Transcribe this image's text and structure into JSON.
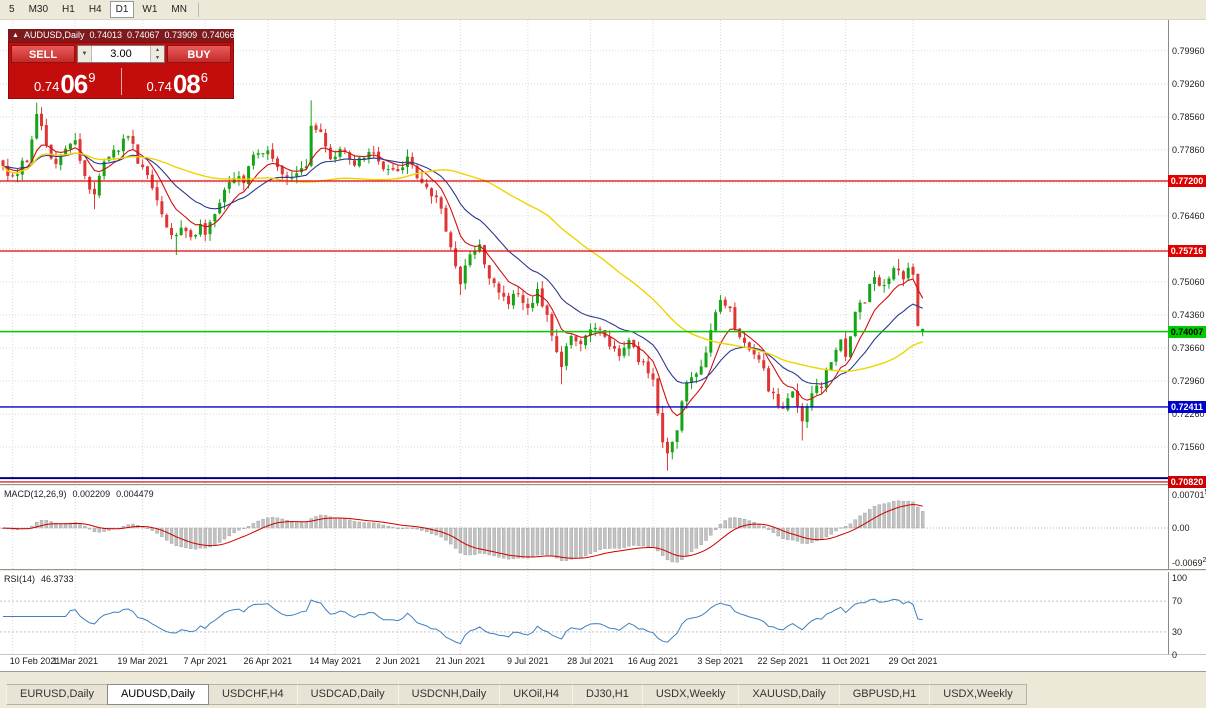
{
  "toolbar": {
    "timeframes": [
      "5",
      "M30",
      "H1",
      "H4",
      "D1",
      "W1",
      "MN"
    ],
    "active": "D1"
  },
  "chart_header": {
    "symbol": "AUDUSD,Daily",
    "open": "0.74013",
    "high": "0.74067",
    "low": "0.73909",
    "close": "0.74066"
  },
  "trade_widget": {
    "sell_label": "SELL",
    "buy_label": "BUY",
    "volume": "3.00",
    "bid": {
      "big": "0.74",
      "pips": "06",
      "point": "9"
    },
    "ask": {
      "big": "0.74",
      "pips": "08",
      "point": "6"
    }
  },
  "indicators": {
    "macd": {
      "name": "MACD(12,26,9)",
      "value1": "0.002209",
      "value2": "0.004479"
    },
    "rsi": {
      "name": "RSI(14)",
      "value": "46.3733"
    }
  },
  "axes": {
    "price_ticks": [
      "0.79960",
      "0.79260",
      "0.78560",
      "0.77860",
      "0.77160",
      "0.76460",
      "0.75760",
      "0.75060",
      "0.74360",
      "0.73660",
      "0.72960",
      "0.72260",
      "0.71560"
    ],
    "macd_ticks": [
      {
        "text": "0.00701",
        "sup": "5",
        "value": 0.007015
      },
      {
        "text": "0.00",
        "sup": "",
        "value": 0
      },
      {
        "text": "-0.0069",
        "sup": "2",
        "value": -0.00692
      }
    ],
    "rsi_ticks": [
      100,
      70,
      30,
      0
    ]
  },
  "tabs": [
    {
      "label": "EURUSD,Daily",
      "active": false
    },
    {
      "label": "AUDUSD,Daily",
      "active": true
    },
    {
      "label": "USDCHF,H4",
      "active": false
    },
    {
      "label": "USDCAD,Daily",
      "active": false
    },
    {
      "label": "USDCNH,Daily",
      "active": false
    },
    {
      "label": "UKOil,H4",
      "active": false
    },
    {
      "label": "DJ30,H1",
      "active": false
    },
    {
      "label": "USDX,Weekly",
      "active": false
    },
    {
      "label": "XAUUSD,Daily",
      "active": false
    },
    {
      "label": "GBPUSD,H1",
      "active": false
    },
    {
      "label": "USDX,Weekly",
      "active": false
    }
  ],
  "chart_data": {
    "type": "candlestick",
    "symbol": "AUDUSD",
    "timeframe": "Daily",
    "title": "AUDUSD,Daily",
    "n_candles": 192,
    "x_labels": [
      "10 Feb 2021",
      "1 Mar 2021",
      "19 Mar 2021",
      "7 Apr 2021",
      "26 Apr 2021",
      "14 May 2021",
      "2 Jun 2021",
      "21 Jun 2021",
      "9 Jul 2021",
      "28 Jul 2021",
      "16 Aug 2021",
      "3 Sep 2021",
      "22 Sep 2021",
      "11 Oct 2021",
      "29 Oct 2021"
    ],
    "x_label_indices": [
      2,
      15,
      29,
      42,
      55,
      69,
      82,
      95,
      109,
      122,
      135,
      149,
      162,
      175,
      189
    ],
    "view_price_top": 0.8061,
    "view_price_bottom": 0.7078,
    "colors": {
      "bull": "#17A317",
      "bear": "#E03535",
      "grid": "#D8D8D8"
    },
    "last_candle": {
      "open": 0.74013,
      "high": 0.74067,
      "low": 0.73909,
      "close": 0.74066
    },
    "waypoints": [
      [
        0,
        0.775
      ],
      [
        2,
        0.7732
      ],
      [
        5,
        0.7768
      ],
      [
        7,
        0.7858
      ],
      [
        9,
        0.78
      ],
      [
        11,
        0.7752
      ],
      [
        13,
        0.7788
      ],
      [
        15,
        0.7808
      ],
      [
        17,
        0.7725
      ],
      [
        19,
        0.7688
      ],
      [
        21,
        0.7768
      ],
      [
        24,
        0.7788
      ],
      [
        26,
        0.7818
      ],
      [
        28,
        0.7762
      ],
      [
        29,
        0.7748
      ],
      [
        31,
        0.7712
      ],
      [
        33,
        0.7652
      ],
      [
        35,
        0.7595
      ],
      [
        37,
        0.762
      ],
      [
        39,
        0.76
      ],
      [
        41,
        0.7628
      ],
      [
        42,
        0.7615
      ],
      [
        44,
        0.7655
      ],
      [
        46,
        0.7708
      ],
      [
        48,
        0.7735
      ],
      [
        50,
        0.7722
      ],
      [
        52,
        0.7768
      ],
      [
        54,
        0.779
      ],
      [
        55,
        0.7782
      ],
      [
        57,
        0.7748
      ],
      [
        59,
        0.7718
      ],
      [
        61,
        0.7736
      ],
      [
        63,
        0.7748
      ],
      [
        64,
        0.7848
      ],
      [
        66,
        0.7818
      ],
      [
        68,
        0.7776
      ],
      [
        69,
        0.777
      ],
      [
        71,
        0.779
      ],
      [
        73,
        0.7756
      ],
      [
        75,
        0.7766
      ],
      [
        77,
        0.778
      ],
      [
        79,
        0.7746
      ],
      [
        81,
        0.7752
      ],
      [
        82,
        0.7742
      ],
      [
        84,
        0.7762
      ],
      [
        86,
        0.773
      ],
      [
        88,
        0.77
      ],
      [
        90,
        0.7692
      ],
      [
        92,
        0.7612
      ],
      [
        94,
        0.7545
      ],
      [
        95,
        0.7502
      ],
      [
        97,
        0.7568
      ],
      [
        99,
        0.758
      ],
      [
        101,
        0.7522
      ],
      [
        103,
        0.7482
      ],
      [
        105,
        0.7456
      ],
      [
        107,
        0.7486
      ],
      [
        109,
        0.7446
      ],
      [
        111,
        0.7482
      ],
      [
        113,
        0.7442
      ],
      [
        115,
        0.7358
      ],
      [
        116,
        0.7332
      ],
      [
        118,
        0.7396
      ],
      [
        120,
        0.7382
      ],
      [
        122,
        0.74
      ],
      [
        124,
        0.7412
      ],
      [
        126,
        0.7372
      ],
      [
        128,
        0.7356
      ],
      [
        130,
        0.7372
      ],
      [
        132,
        0.7346
      ],
      [
        134,
        0.7322
      ],
      [
        135,
        0.7292
      ],
      [
        136,
        0.7232
      ],
      [
        137,
        0.7162
      ],
      [
        138,
        0.7136
      ],
      [
        140,
        0.7202
      ],
      [
        142,
        0.7292
      ],
      [
        144,
        0.7312
      ],
      [
        146,
        0.7346
      ],
      [
        148,
        0.7446
      ],
      [
        149,
        0.7466
      ],
      [
        151,
        0.744
      ],
      [
        153,
        0.7382
      ],
      [
        155,
        0.7362
      ],
      [
        157,
        0.7346
      ],
      [
        159,
        0.7282
      ],
      [
        161,
        0.7252
      ],
      [
        162,
        0.7242
      ],
      [
        164,
        0.7266
      ],
      [
        166,
        0.7216
      ],
      [
        168,
        0.7262
      ],
      [
        170,
        0.7292
      ],
      [
        172,
        0.7332
      ],
      [
        174,
        0.7382
      ],
      [
        175,
        0.7356
      ],
      [
        177,
        0.7432
      ],
      [
        179,
        0.7472
      ],
      [
        181,
        0.7512
      ],
      [
        183,
        0.7492
      ],
      [
        185,
        0.7532
      ],
      [
        187,
        0.7516
      ],
      [
        188,
        0.7536
      ],
      [
        189,
        0.7522
      ],
      [
        190,
        0.7412
      ],
      [
        191,
        0.74066
      ]
    ],
    "wick_events": [
      {
        "i": 7,
        "high": 0.7886
      },
      {
        "i": 19,
        "low": 0.766
      },
      {
        "i": 36,
        "low": 0.7563
      },
      {
        "i": 64,
        "high": 0.7891
      },
      {
        "i": 95,
        "low": 0.7478
      },
      {
        "i": 116,
        "low": 0.7289
      },
      {
        "i": 138,
        "low": 0.7106
      },
      {
        "i": 149,
        "high": 0.7478
      },
      {
        "i": 166,
        "low": 0.717
      },
      {
        "i": 186,
        "high": 0.7555
      }
    ],
    "h_lines": [
      {
        "price": 0.772,
        "color": "#E00000",
        "width": 1.2,
        "label": "0.77200",
        "label_text": "#FFFFFF"
      },
      {
        "price": 0.75716,
        "color": "#E00000",
        "width": 1.2,
        "label": "0.75716",
        "label_text": "#FFFFFF"
      },
      {
        "price": 0.74007,
        "color": "#00CC00",
        "width": 1.6,
        "label": "0.74007",
        "label_text": "#000000"
      },
      {
        "price": 0.72411,
        "color": "#0000CC",
        "width": 1.4,
        "label": "0.72411",
        "label_text": "#FFFFFF"
      },
      {
        "price": 0.709,
        "color": "#000080",
        "width": 2.0,
        "label": null,
        "label_text": null
      },
      {
        "price": 0.7082,
        "color": "#CC0000",
        "width": 1.2,
        "label": "0.70820",
        "label_text": "#FFFFFF"
      }
    ],
    "moving_averages": [
      {
        "period": 8,
        "method": "ema",
        "color": "#D01010",
        "width": 1.1
      },
      {
        "period": 20,
        "method": "ema",
        "color": "#2B3990",
        "width": 1.1
      },
      {
        "period": 50,
        "method": "sma",
        "color": "#EFD400",
        "width": 1.4
      }
    ],
    "macd": {
      "fast": 12,
      "slow": 26,
      "signal": 9,
      "histogram_color": "#C2C2C2",
      "histogram_border": "#9E9E9E",
      "signal_color": "#CC0000"
    },
    "rsi": {
      "period": 14,
      "color": "#3E7FC1",
      "levels": [
        70,
        30
      ]
    }
  }
}
